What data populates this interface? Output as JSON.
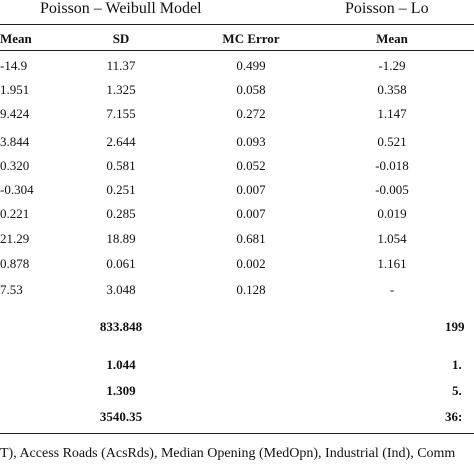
{
  "group_titles": [
    "Poisson – Weibull Model",
    "Poisson – Lo"
  ],
  "headers": [
    "Mean",
    "SD",
    "MC Error",
    "Mean"
  ],
  "rows": [
    [
      "-14.9",
      "11.37",
      "0.499",
      "-1.29"
    ],
    [
      "1.951",
      "1.325",
      "0.058",
      "0.358"
    ],
    [
      "9.424",
      "7.155",
      "0.272",
      "1.147"
    ],
    [
      "3.844",
      "2.644",
      "0.093",
      "0.521"
    ],
    [
      "0.320",
      "0.581",
      "0.052",
      "-0.018"
    ],
    [
      "-0.304",
      "0.251",
      "0.007",
      "-0.005"
    ],
    [
      "0.221",
      "0.285",
      "0.007",
      "0.019"
    ],
    [
      "21.29",
      "18.89",
      "0.681",
      "1.054"
    ],
    [
      "0.878",
      "0.061",
      "0.002",
      "1.161"
    ],
    [
      "7.53",
      "3.048",
      "0.128",
      "-"
    ]
  ],
  "summary_rows": [
    [
      "833.848",
      "199"
    ],
    [
      "1.044",
      "1."
    ],
    [
      "1.309",
      "5."
    ],
    [
      "3540.35",
      "36:"
    ]
  ],
  "footnote": "T), Access Roads (AcsRds), Median Opening (MedOpn), Industrial (Ind), Comm"
}
